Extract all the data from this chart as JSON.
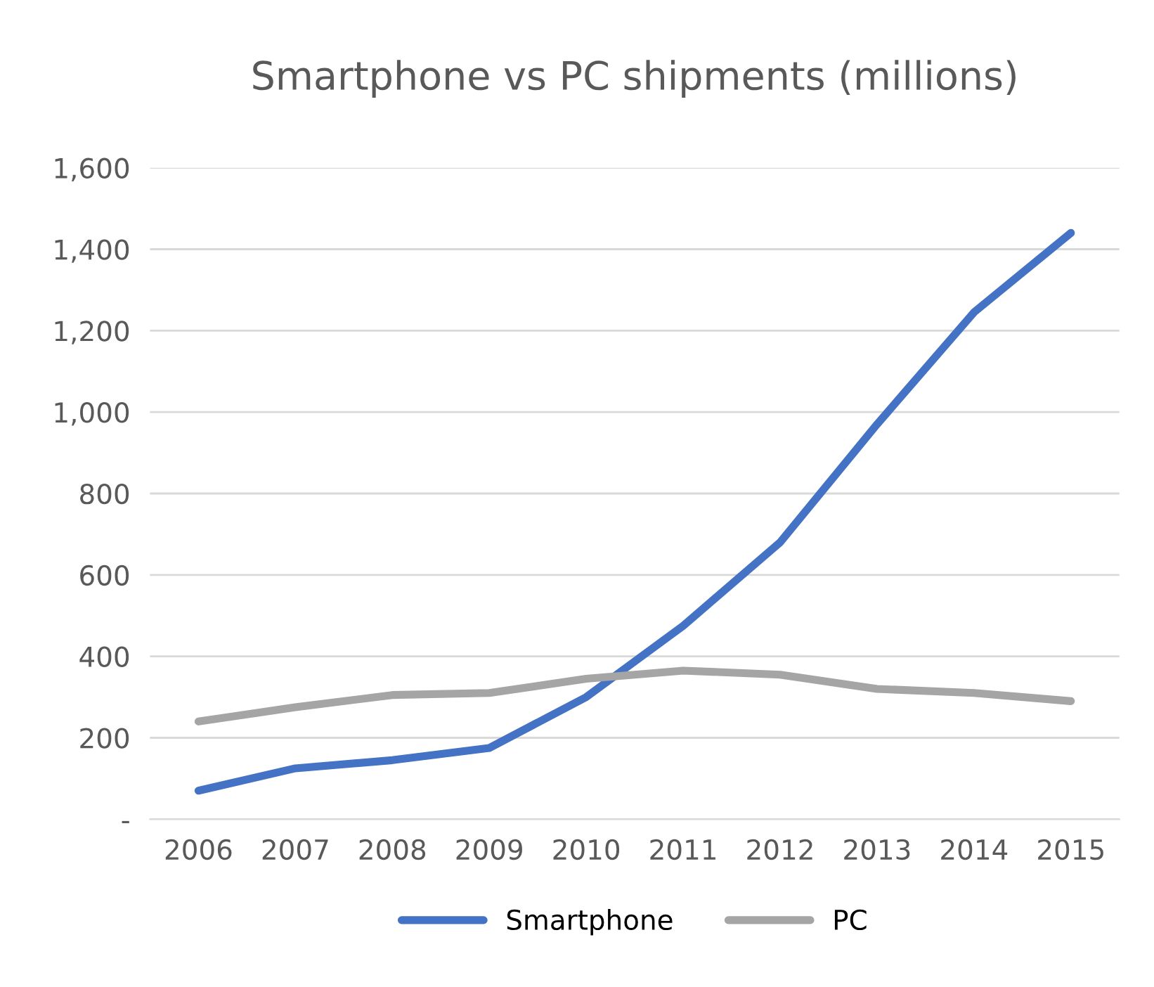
{
  "chart_data": {
    "type": "line",
    "title": "Smartphone vs PC shipments (millions)",
    "categories": [
      "2006",
      "2007",
      "2008",
      "2009",
      "2010",
      "2011",
      "2012",
      "2013",
      "2014",
      "2015"
    ],
    "series": [
      {
        "name": "Smartphone",
        "color": "#4472c4",
        "values": [
          70,
          125,
          145,
          175,
          300,
          475,
          680,
          970,
          1245,
          1440
        ]
      },
      {
        "name": "PC",
        "color": "#a5a5a5",
        "values": [
          240,
          275,
          305,
          310,
          345,
          365,
          355,
          320,
          310,
          290
        ]
      }
    ],
    "ylim": [
      0,
      1600
    ],
    "yticks": [
      {
        "value": 0,
        "label": "-"
      },
      200,
      400,
      600,
      800,
      {
        "value": 1000,
        "label": "1,000"
      },
      {
        "value": 1200,
        "label": "1,200"
      },
      {
        "value": 1400,
        "label": "1,400"
      },
      {
        "value": 1600,
        "label": "1,600"
      }
    ],
    "grid": "y",
    "legend": "bottom",
    "marker": "none",
    "line_style": "solid"
  }
}
